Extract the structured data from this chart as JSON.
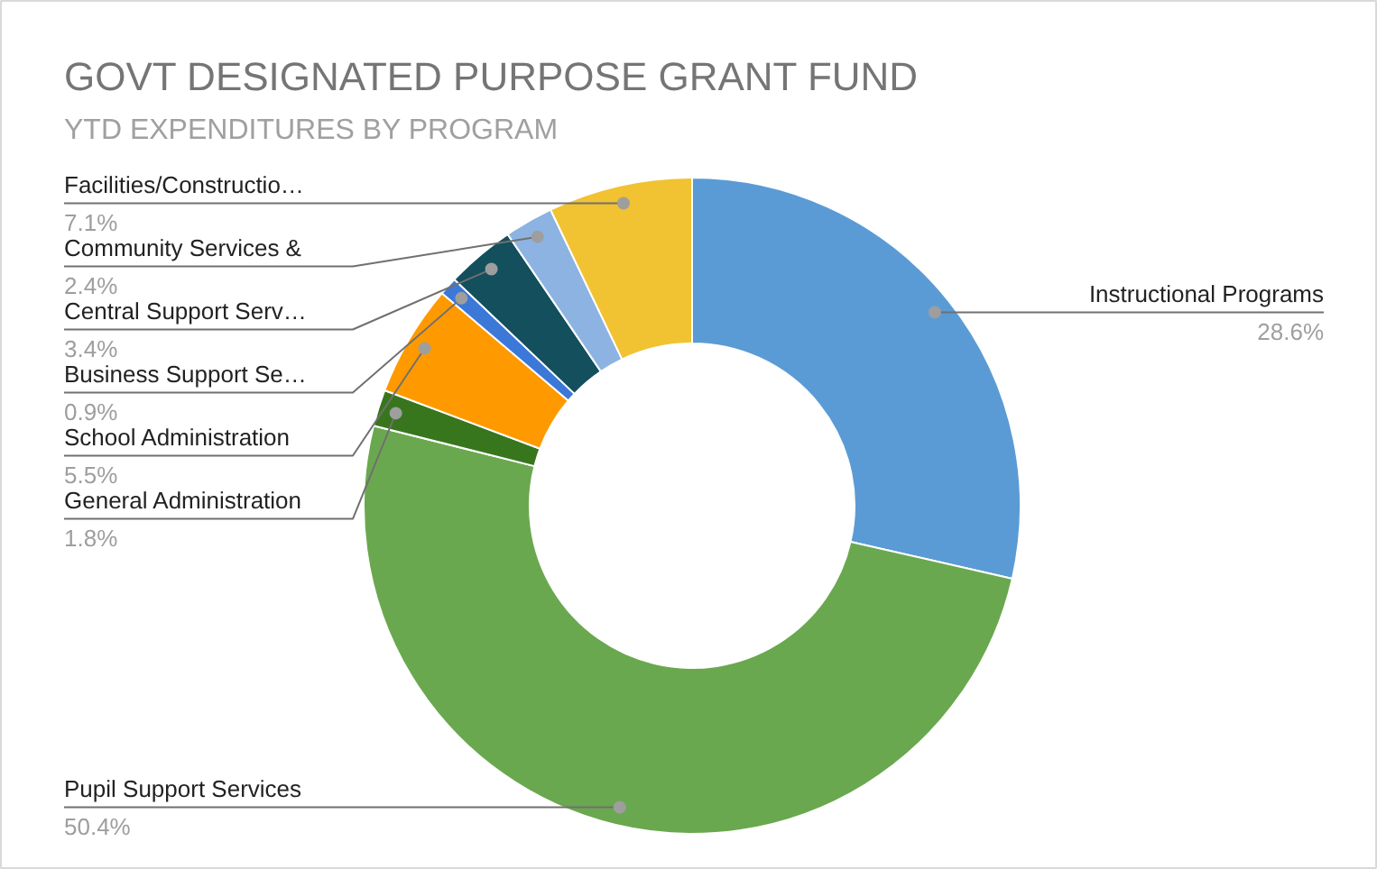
{
  "chart_data": {
    "type": "donut",
    "title": "GOVT DESIGNATED PURPOSE GRANT FUND",
    "subtitle": "YTD EXPENDITURES BY PROGRAM",
    "categories": [
      "Instructional Programs",
      "Pupil Support Services",
      "General Administration",
      "School Administration",
      "Business Support Se…",
      "Central Support Serv…",
      "Community Services &",
      "Facilities/Constructio…"
    ],
    "values": [
      28.6,
      50.4,
      1.8,
      5.5,
      0.9,
      3.4,
      2.4,
      7.1
    ],
    "value_labels": [
      "28.6%",
      "50.4%",
      "1.8%",
      "5.5%",
      "0.9%",
      "3.4%",
      "2.4%",
      "7.1%"
    ],
    "colors": [
      "#5b9bd5",
      "#6aa84f",
      "#38761d",
      "#ff9900",
      "#3c78d8",
      "#134f5c",
      "#8db3e2",
      "#f1c232"
    ]
  }
}
